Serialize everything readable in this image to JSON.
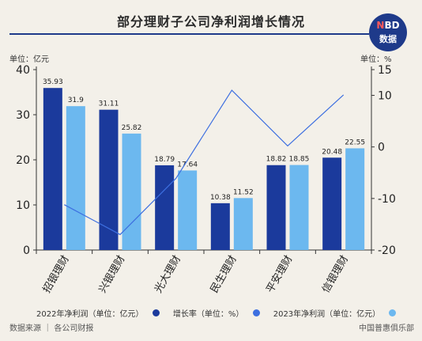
{
  "header": {
    "title": "部分理财子公司净利润增长情况"
  },
  "logo": {
    "n": "N",
    "bd": "BD",
    "line2": "数据"
  },
  "units": {
    "left": "单位：亿元",
    "right": "单位：%"
  },
  "legend": {
    "item1": "2022年净利润（单位：亿元）",
    "item2": "增长率（单位：%）",
    "item3": "2023年净利润（单位：亿元）"
  },
  "footer": {
    "source": "数据来源 ｜ 各公司财报",
    "brand": "中国普惠俱乐部"
  },
  "colors": {
    "bar2022": "#1b3a9c",
    "bar2023": "#6cb8ef",
    "line": "#3d6fe0",
    "title_line": "#1e3a8a"
  },
  "chart_data": {
    "type": "bar",
    "categories": [
      "招银理财",
      "兴银理财",
      "光大理财",
      "民生理财",
      "平安理财",
      "信银理财"
    ],
    "series": [
      {
        "name": "2022年净利润",
        "values": [
          35.93,
          31.11,
          18.79,
          10.38,
          18.82,
          20.48
        ]
      },
      {
        "name": "2023年净利润",
        "values": [
          31.9,
          25.82,
          17.64,
          11.52,
          18.85,
          22.55
        ]
      },
      {
        "name": "增长率",
        "type": "line",
        "axis": "right",
        "values": [
          -11.2,
          -17.0,
          -6.1,
          11.0,
          0.2,
          10.1
        ]
      }
    ],
    "ylim_left": [
      0,
      40
    ],
    "yticks_left": [
      0,
      10,
      20,
      30,
      40
    ],
    "ylim_right": [
      -20,
      15
    ],
    "yticks_right": [
      -20,
      -10,
      0,
      10,
      15
    ],
    "grid": false,
    "legend_position": "bottom"
  }
}
